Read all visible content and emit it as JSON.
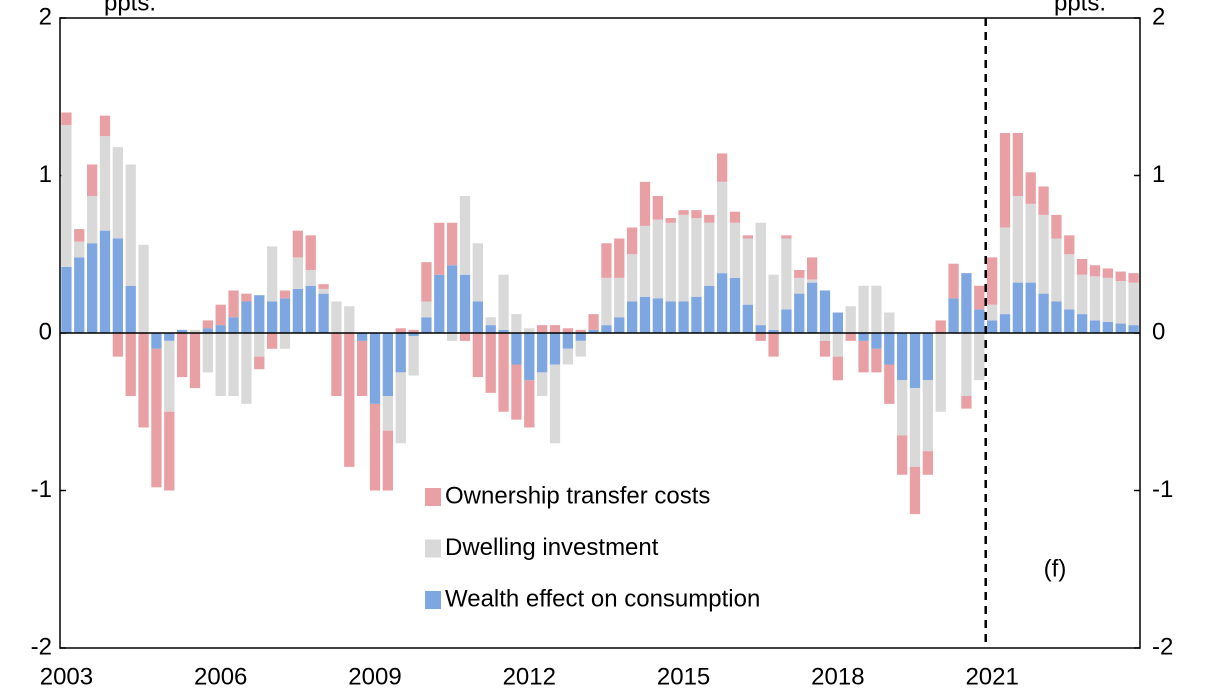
{
  "chart_data": {
    "type": "stacked_bar",
    "y_label": "ppts.",
    "y2_label": "ppts.",
    "annotation": "(f)",
    "categories": [
      "2003",
      null,
      null,
      null,
      null,
      null,
      null,
      null,
      null,
      null,
      null,
      null,
      "2006",
      null,
      null,
      null,
      null,
      null,
      null,
      null,
      null,
      null,
      null,
      null,
      "2009",
      null,
      null,
      null,
      null,
      null,
      null,
      null,
      null,
      null,
      null,
      null,
      "2012",
      null,
      null,
      null,
      null,
      null,
      null,
      null,
      null,
      null,
      null,
      null,
      "2015",
      null,
      null,
      null,
      null,
      null,
      null,
      null,
      null,
      null,
      null,
      null,
      "2018",
      null,
      null,
      null,
      null,
      null,
      null,
      null,
      null,
      null,
      null,
      null,
      "2021",
      null,
      null,
      null,
      null,
      null,
      null,
      null,
      null,
      null,
      null,
      null
    ],
    "series": [
      {
        "name": "Wealth effect on consumption",
        "color": "#7ea6e0",
        "values": [
          0.42,
          0.48,
          0.57,
          0.65,
          0.6,
          0.3,
          0,
          -0.1,
          -0.05,
          0.02,
          0,
          0.03,
          0.05,
          0.1,
          0.2,
          0.24,
          0.2,
          0.22,
          0.28,
          0.3,
          0.25,
          0,
          0,
          -0.05,
          -0.45,
          -0.4,
          -0.25,
          -0.02,
          0.1,
          0.37,
          0.43,
          0.37,
          0.2,
          0.05,
          0.02,
          -0.2,
          -0.3,
          -0.25,
          -0.2,
          -0.1,
          -0.05,
          0.02,
          0.05,
          0.1,
          0.2,
          0.23,
          0.22,
          0.2,
          0.2,
          0.23,
          0.3,
          0.38,
          0.35,
          0.18,
          0.05,
          0.02,
          0.15,
          0.25,
          0.32,
          0.27,
          0.13,
          0,
          -0.05,
          -0.1,
          -0.2,
          -0.3,
          -0.35,
          -0.3,
          0,
          0.22,
          0.38,
          0.15,
          0.08,
          0.12,
          0.32,
          0.32,
          0.25,
          0.2,
          0.15,
          0.12,
          0.08,
          0.07,
          0.06,
          0.05
        ]
      },
      {
        "name": "Dwelling investment",
        "color": "#d9d9d9",
        "values": [
          0.9,
          0.1,
          0.3,
          0.6,
          0.58,
          0.77,
          0.56,
          0,
          -0.45,
          0,
          0.02,
          -0.25,
          -0.4,
          -0.4,
          -0.45,
          -0.15,
          0.35,
          -0.1,
          0.2,
          0.1,
          0.03,
          0.2,
          0.17,
          0,
          0,
          -0.22,
          -0.45,
          -0.25,
          0.1,
          0,
          -0.05,
          0.5,
          0.37,
          0.05,
          0.35,
          0.12,
          0.03,
          -0.15,
          -0.5,
          -0.1,
          -0.1,
          0,
          0.3,
          0.25,
          0.3,
          0.45,
          0.5,
          0.5,
          0.55,
          0.5,
          0.4,
          0.58,
          0.35,
          0.42,
          0.65,
          0.35,
          0.45,
          0.1,
          0.02,
          -0.05,
          -0.15,
          0.17,
          0.3,
          0.3,
          0.13,
          -0.35,
          -0.5,
          -0.45,
          -0.5,
          0,
          -0.4,
          -0.3,
          0.1,
          0.55,
          0.55,
          0.5,
          0.5,
          0.4,
          0.35,
          0.25,
          0.28,
          0.28,
          0.27,
          0.27
        ]
      },
      {
        "name": "Ownership transfer costs",
        "color": "#e8a0a4",
        "values": [
          0.08,
          0.08,
          0.2,
          0.13,
          -0.15,
          -0.4,
          -0.6,
          -0.88,
          -0.5,
          -0.28,
          -0.35,
          0.05,
          0.13,
          0.17,
          0.05,
          -0.08,
          -0.1,
          0.05,
          0.17,
          0.22,
          0.03,
          -0.4,
          -0.85,
          -0.35,
          -0.55,
          -0.38,
          0.03,
          0.02,
          0.25,
          0.33,
          0.27,
          -0.05,
          -0.28,
          -0.38,
          -0.5,
          -0.35,
          -0.3,
          0.05,
          0.05,
          0.03,
          0.02,
          0.1,
          0.22,
          0.25,
          0.17,
          0.28,
          0.15,
          0.03,
          0.03,
          0.05,
          0.05,
          0.18,
          0.07,
          0.02,
          -0.05,
          -0.15,
          0.02,
          0.05,
          0.14,
          -0.1,
          -0.15,
          -0.05,
          -0.2,
          -0.15,
          -0.25,
          -0.25,
          -0.3,
          -0.15,
          0.08,
          0.22,
          -0.08,
          0.15,
          0.3,
          0.6,
          0.4,
          0.2,
          0.18,
          0.15,
          0.12,
          0.1,
          0.07,
          0.06,
          0.06,
          0.06
        ]
      }
    ],
    "ylim": [
      -2,
      2
    ],
    "yticks": [
      -2,
      -1,
      0,
      1,
      2
    ],
    "y2lim": [
      -2,
      2
    ],
    "y2ticks": [
      -2,
      -1,
      0,
      1,
      2
    ]
  }
}
